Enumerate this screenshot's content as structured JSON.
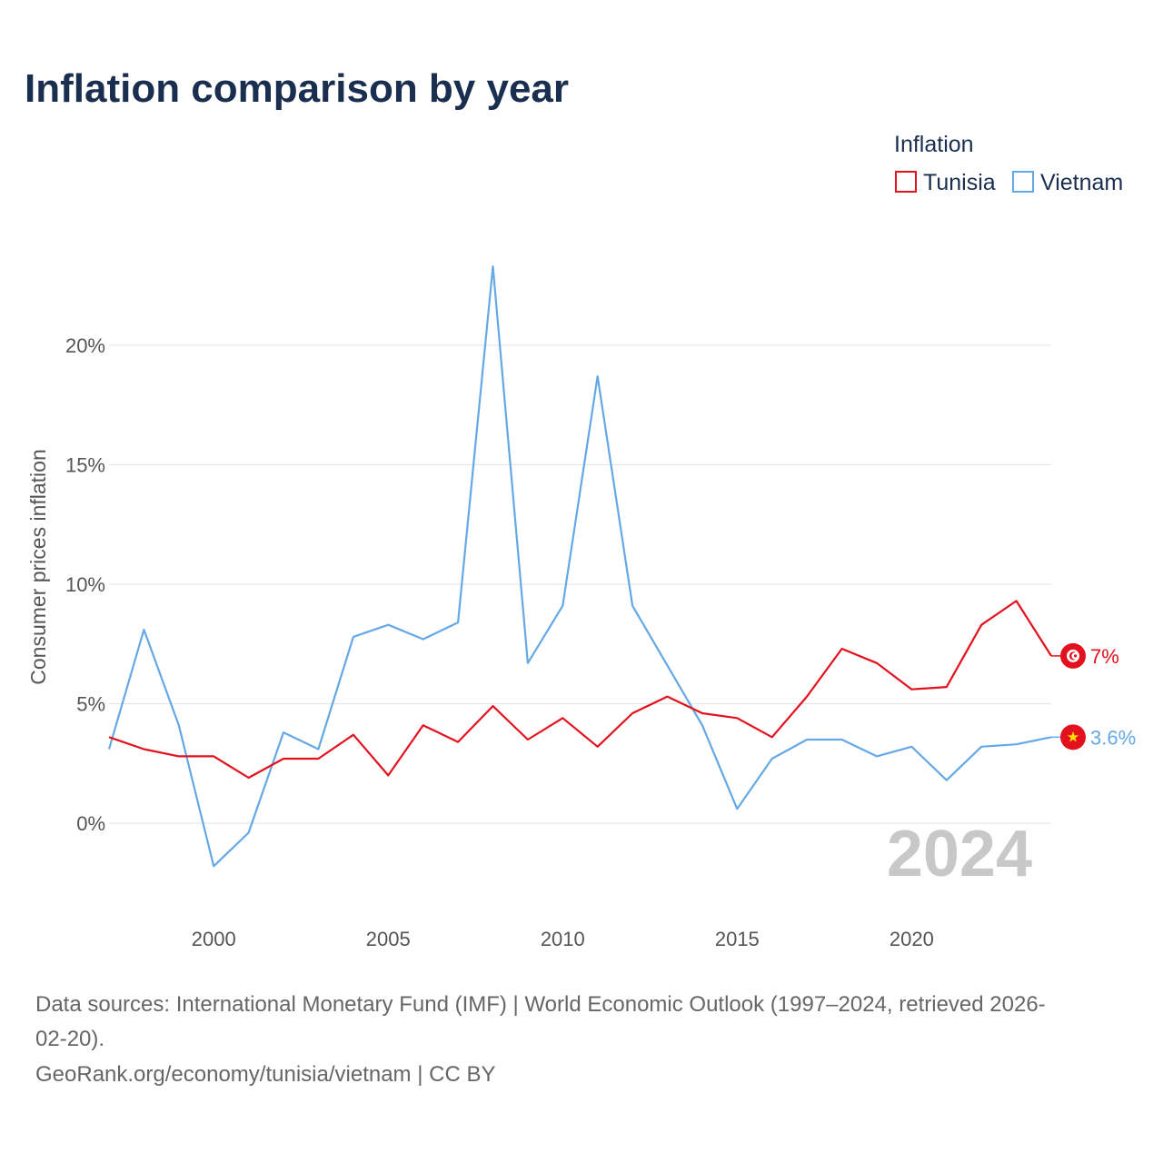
{
  "chart_data": {
    "type": "line",
    "title": "Inflation comparison by year",
    "legend_title": "Inflation",
    "legend_position": "top-right",
    "ylabel": "Consumer prices inflation",
    "xlabel": "",
    "xlim": [
      1997,
      2024
    ],
    "ylim": [
      -3,
      24
    ],
    "x_ticks": [
      2000,
      2005,
      2010,
      2015,
      2020
    ],
    "x_tick_labels": [
      "2000",
      "2005",
      "2010",
      "2015",
      "2020"
    ],
    "y_ticks": [
      0,
      5,
      10,
      15,
      20
    ],
    "y_tick_labels": [
      "0%",
      "5%",
      "10%",
      "15%",
      "20%"
    ],
    "grid": true,
    "watermark_year": "2024",
    "x": [
      1997,
      1998,
      1999,
      2000,
      2001,
      2002,
      2003,
      2004,
      2005,
      2006,
      2007,
      2008,
      2009,
      2010,
      2011,
      2012,
      2013,
      2014,
      2015,
      2016,
      2017,
      2018,
      2019,
      2020,
      2021,
      2022,
      2023,
      2024
    ],
    "series": [
      {
        "name": "Tunisia",
        "color": "#e3101d",
        "end_label": "7%",
        "flag_icon": "tunisia-flag-icon",
        "values": [
          3.6,
          3.1,
          2.8,
          2.8,
          1.9,
          2.7,
          2.7,
          3.7,
          2.0,
          4.1,
          3.4,
          4.9,
          3.5,
          4.4,
          3.2,
          4.6,
          5.3,
          4.6,
          4.4,
          3.6,
          5.3,
          7.3,
          6.7,
          5.6,
          5.7,
          8.3,
          9.3,
          7.0
        ]
      },
      {
        "name": "Vietnam",
        "color": "#64a8e6",
        "end_label": "3.6%",
        "flag_icon": "vietnam-flag-icon",
        "values": [
          3.1,
          8.1,
          4.1,
          -1.8,
          -0.4,
          3.8,
          3.1,
          7.8,
          8.3,
          7.7,
          8.4,
          23.3,
          6.7,
          9.1,
          18.7,
          9.1,
          6.6,
          4.1,
          0.6,
          2.7,
          3.5,
          3.5,
          2.8,
          3.2,
          1.8,
          3.2,
          3.3,
          3.6
        ]
      }
    ]
  },
  "footer": {
    "source_line1": "Data sources: International Monetary Fund (IMF) | World Economic Outlook (1997–2024, retrieved 2026-",
    "source_line2": "02-20).",
    "attribution": "GeoRank.org/economy/tunisia/vietnam | CC BY"
  }
}
